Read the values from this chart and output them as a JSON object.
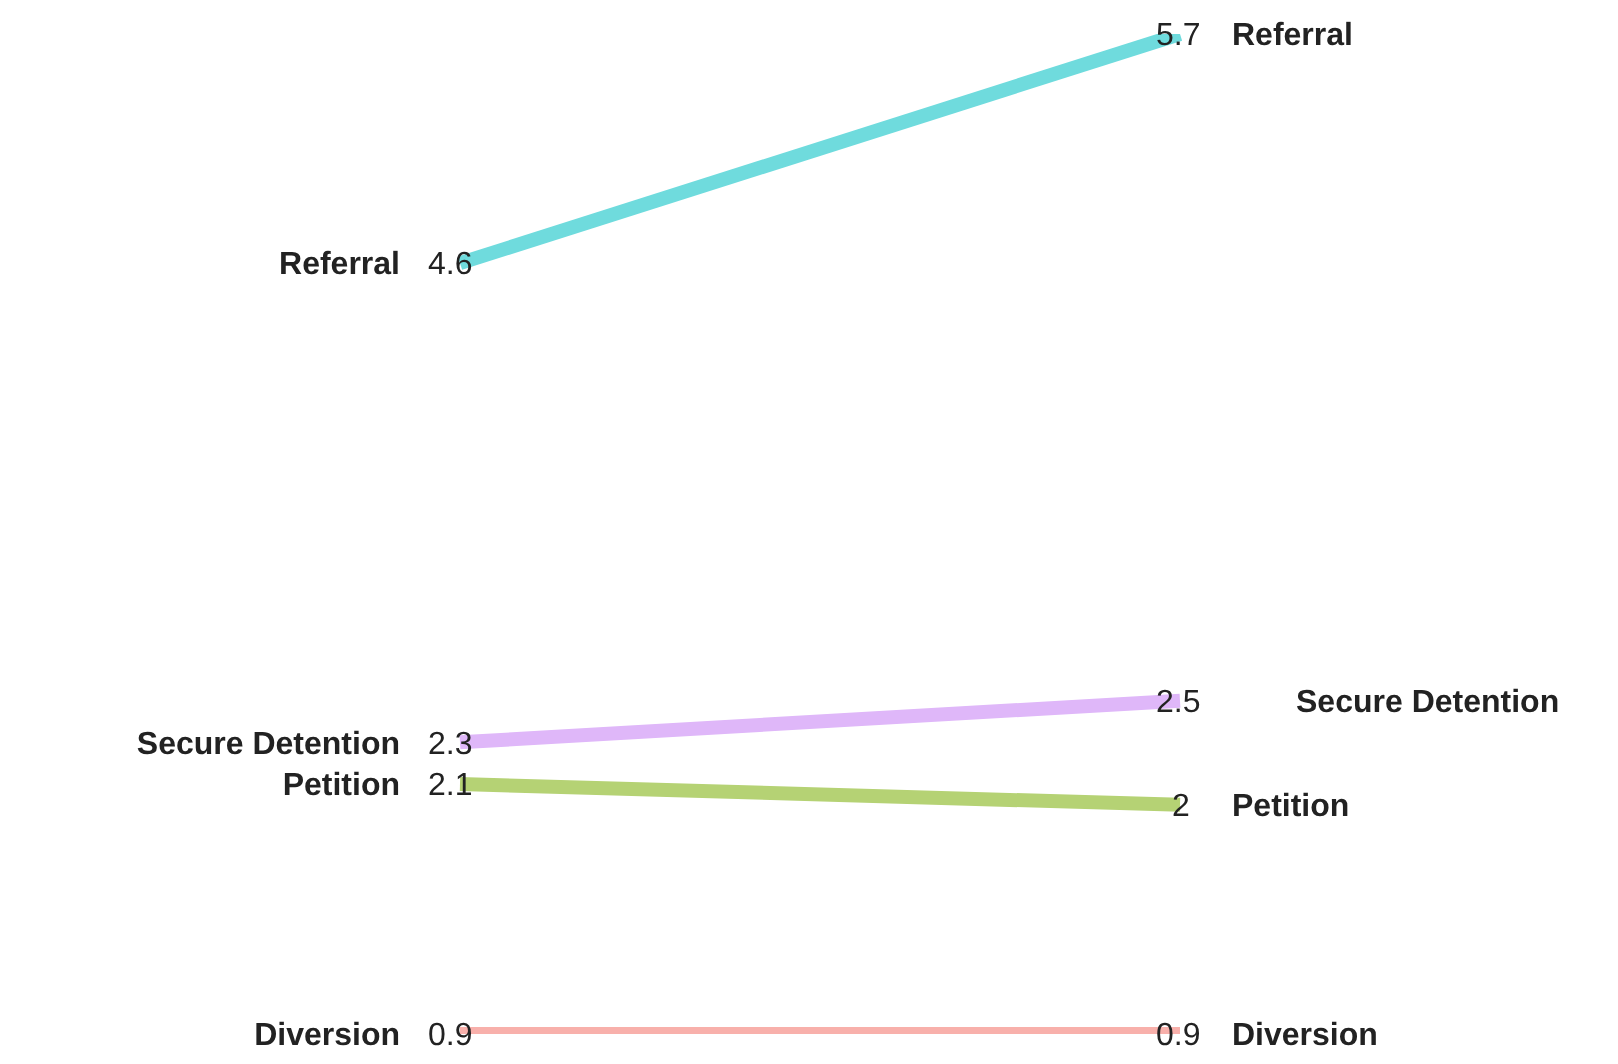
{
  "chart_data": {
    "type": "line",
    "categories": [
      null,
      null
    ],
    "tick_labels": false,
    "grid": false,
    "legend": false,
    "marker": "none",
    "data_labels": true,
    "series": [
      {
        "name": "Referral",
        "color": "#6fdbdd",
        "values": [
          4.6,
          5.7
        ]
      },
      {
        "name": "Secure Detention",
        "color": "#dfb7f9",
        "values": [
          2.3,
          2.5
        ]
      },
      {
        "name": "Petition",
        "color": "#b5d274",
        "values": [
          2.1,
          2
        ]
      },
      {
        "name": "Diversion",
        "color": "#f8b0ab",
        "values": [
          0.9,
          0.9
        ]
      }
    ]
  }
}
